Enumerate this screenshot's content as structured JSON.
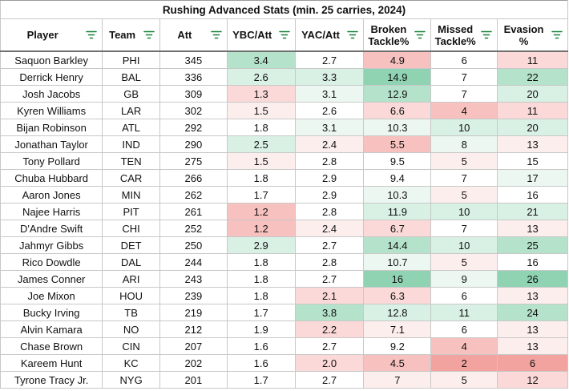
{
  "sheet": {
    "title": "Rushing Advanced Stats (min. 25 carries, 2024)",
    "columns": [
      {
        "key": "player",
        "label": "Player"
      },
      {
        "key": "team",
        "label": "Team"
      },
      {
        "key": "att",
        "label": "Att"
      },
      {
        "key": "ybc",
        "label": "YBC/Att"
      },
      {
        "key": "yac",
        "label": "YAC/Att"
      },
      {
        "key": "btk",
        "label": "Broken Tackle%"
      },
      {
        "key": "mtk",
        "label": "Missed Tackle%"
      },
      {
        "key": "eva",
        "label": "Evasion %"
      }
    ],
    "colors": {
      "green_strong": "#8fd3b3",
      "green_mid": "#b4e2cb",
      "green_light": "#d9f0e4",
      "green_faint": "#ecf7f1",
      "neutral": "#ffffff",
      "red_faint": "#fdeeee",
      "red_light": "#fbd9d8",
      "red_mid": "#f7c1bf",
      "red_strong": "#f2a39f",
      "filter_icon": "#188038"
    },
    "rows": [
      {
        "player": "Saquon Barkley",
        "team": "PHI",
        "att": "345",
        "ybc": "3.4",
        "yac": "2.7",
        "btk": "4.9",
        "mtk": "6",
        "eva": "11",
        "bg": {
          "ybc": "green_mid",
          "yac": "neutral",
          "btk": "red_mid",
          "mtk": "neutral",
          "eva": "red_light"
        }
      },
      {
        "player": "Derrick Henry",
        "team": "BAL",
        "att": "336",
        "ybc": "2.6",
        "yac": "3.3",
        "btk": "14.9",
        "mtk": "7",
        "eva": "22",
        "bg": {
          "ybc": "green_light",
          "yac": "green_light",
          "btk": "green_strong",
          "mtk": "neutral",
          "eva": "green_mid"
        }
      },
      {
        "player": "Josh Jacobs",
        "team": "GB",
        "att": "309",
        "ybc": "1.3",
        "yac": "3.1",
        "btk": "12.9",
        "mtk": "7",
        "eva": "20",
        "bg": {
          "ybc": "red_light",
          "yac": "green_faint",
          "btk": "green_mid",
          "mtk": "neutral",
          "eva": "green_light"
        }
      },
      {
        "player": "Kyren Williams",
        "team": "LAR",
        "att": "302",
        "ybc": "1.5",
        "yac": "2.6",
        "btk": "6.6",
        "mtk": "4",
        "eva": "11",
        "bg": {
          "ybc": "red_faint",
          "yac": "neutral",
          "btk": "red_light",
          "mtk": "red_mid",
          "eva": "red_light"
        }
      },
      {
        "player": "Bijan Robinson",
        "team": "ATL",
        "att": "292",
        "ybc": "1.8",
        "yac": "3.1",
        "btk": "10.3",
        "mtk": "10",
        "eva": "20",
        "bg": {
          "ybc": "neutral",
          "yac": "green_faint",
          "btk": "green_faint",
          "mtk": "green_light",
          "eva": "green_light"
        }
      },
      {
        "player": "Jonathan Taylor",
        "team": "IND",
        "att": "290",
        "ybc": "2.5",
        "yac": "2.4",
        "btk": "5.5",
        "mtk": "8",
        "eva": "13",
        "bg": {
          "ybc": "green_light",
          "yac": "red_faint",
          "btk": "red_mid",
          "mtk": "green_faint",
          "eva": "red_faint"
        }
      },
      {
        "player": "Tony Pollard",
        "team": "TEN",
        "att": "275",
        "ybc": "1.5",
        "yac": "2.8",
        "btk": "9.5",
        "mtk": "5",
        "eva": "15",
        "bg": {
          "ybc": "red_faint",
          "yac": "neutral",
          "btk": "neutral",
          "mtk": "red_faint",
          "eva": "neutral"
        }
      },
      {
        "player": "Chuba Hubbard",
        "team": "CAR",
        "att": "266",
        "ybc": "1.8",
        "yac": "2.9",
        "btk": "9.4",
        "mtk": "7",
        "eva": "17",
        "bg": {
          "ybc": "neutral",
          "yac": "neutral",
          "btk": "neutral",
          "mtk": "neutral",
          "eva": "green_faint"
        }
      },
      {
        "player": "Aaron Jones",
        "team": "MIN",
        "att": "262",
        "ybc": "1.7",
        "yac": "2.9",
        "btk": "10.3",
        "mtk": "5",
        "eva": "16",
        "bg": {
          "ybc": "neutral",
          "yac": "neutral",
          "btk": "green_faint",
          "mtk": "red_faint",
          "eva": "neutral"
        }
      },
      {
        "player": "Najee Harris",
        "team": "PIT",
        "att": "261",
        "ybc": "1.2",
        "yac": "2.8",
        "btk": "11.9",
        "mtk": "10",
        "eva": "21",
        "bg": {
          "ybc": "red_mid",
          "yac": "neutral",
          "btk": "green_light",
          "mtk": "green_light",
          "eva": "green_light"
        }
      },
      {
        "player": "D'Andre Swift",
        "team": "CHI",
        "att": "252",
        "ybc": "1.2",
        "yac": "2.4",
        "btk": "6.7",
        "mtk": "7",
        "eva": "13",
        "bg": {
          "ybc": "red_mid",
          "yac": "red_faint",
          "btk": "red_light",
          "mtk": "neutral",
          "eva": "red_faint"
        }
      },
      {
        "player": "Jahmyr Gibbs",
        "team": "DET",
        "att": "250",
        "ybc": "2.9",
        "yac": "2.7",
        "btk": "14.4",
        "mtk": "10",
        "eva": "25",
        "bg": {
          "ybc": "green_light",
          "yac": "neutral",
          "btk": "green_mid",
          "mtk": "green_light",
          "eva": "green_mid"
        }
      },
      {
        "player": "Rico Dowdle",
        "team": "DAL",
        "att": "244",
        "ybc": "1.8",
        "yac": "2.8",
        "btk": "10.7",
        "mtk": "5",
        "eva": "16",
        "bg": {
          "ybc": "neutral",
          "yac": "neutral",
          "btk": "green_faint",
          "mtk": "red_faint",
          "eva": "neutral"
        }
      },
      {
        "player": "James Conner",
        "team": "ARI",
        "att": "243",
        "ybc": "1.8",
        "yac": "2.7",
        "btk": "16",
        "mtk": "9",
        "eva": "26",
        "bg": {
          "ybc": "neutral",
          "yac": "neutral",
          "btk": "green_strong",
          "mtk": "green_faint",
          "eva": "green_strong"
        }
      },
      {
        "player": "Joe Mixon",
        "team": "HOU",
        "att": "239",
        "ybc": "1.8",
        "yac": "2.1",
        "btk": "6.3",
        "mtk": "6",
        "eva": "13",
        "bg": {
          "ybc": "neutral",
          "yac": "red_light",
          "btk": "red_light",
          "mtk": "neutral",
          "eva": "red_faint"
        }
      },
      {
        "player": "Bucky Irving",
        "team": "TB",
        "att": "219",
        "ybc": "1.7",
        "yac": "3.8",
        "btk": "12.8",
        "mtk": "11",
        "eva": "24",
        "bg": {
          "ybc": "neutral",
          "yac": "green_mid",
          "btk": "green_light",
          "mtk": "green_light",
          "eva": "green_mid"
        }
      },
      {
        "player": "Alvin Kamara",
        "team": "NO",
        "att": "212",
        "ybc": "1.9",
        "yac": "2.2",
        "btk": "7.1",
        "mtk": "6",
        "eva": "13",
        "bg": {
          "ybc": "neutral",
          "yac": "red_light",
          "btk": "red_faint",
          "mtk": "neutral",
          "eva": "red_faint"
        }
      },
      {
        "player": "Chase Brown",
        "team": "CIN",
        "att": "207",
        "ybc": "1.6",
        "yac": "2.7",
        "btk": "9.2",
        "mtk": "4",
        "eva": "13",
        "bg": {
          "ybc": "neutral",
          "yac": "neutral",
          "btk": "neutral",
          "mtk": "red_mid",
          "eva": "red_faint"
        }
      },
      {
        "player": "Kareem Hunt",
        "team": "KC",
        "att": "202",
        "ybc": "1.6",
        "yac": "2.0",
        "btk": "4.5",
        "mtk": "2",
        "eva": "6",
        "bg": {
          "ybc": "neutral",
          "yac": "red_light",
          "btk": "red_mid",
          "mtk": "red_strong",
          "eva": "red_strong"
        }
      },
      {
        "player": "Tyrone Tracy Jr.",
        "team": "NYG",
        "att": "201",
        "ybc": "1.7",
        "yac": "2.7",
        "btk": "7",
        "mtk": "5",
        "eva": "12",
        "bg": {
          "ybc": "neutral",
          "yac": "neutral",
          "btk": "red_faint",
          "mtk": "red_faint",
          "eva": "red_light"
        }
      }
    ]
  }
}
